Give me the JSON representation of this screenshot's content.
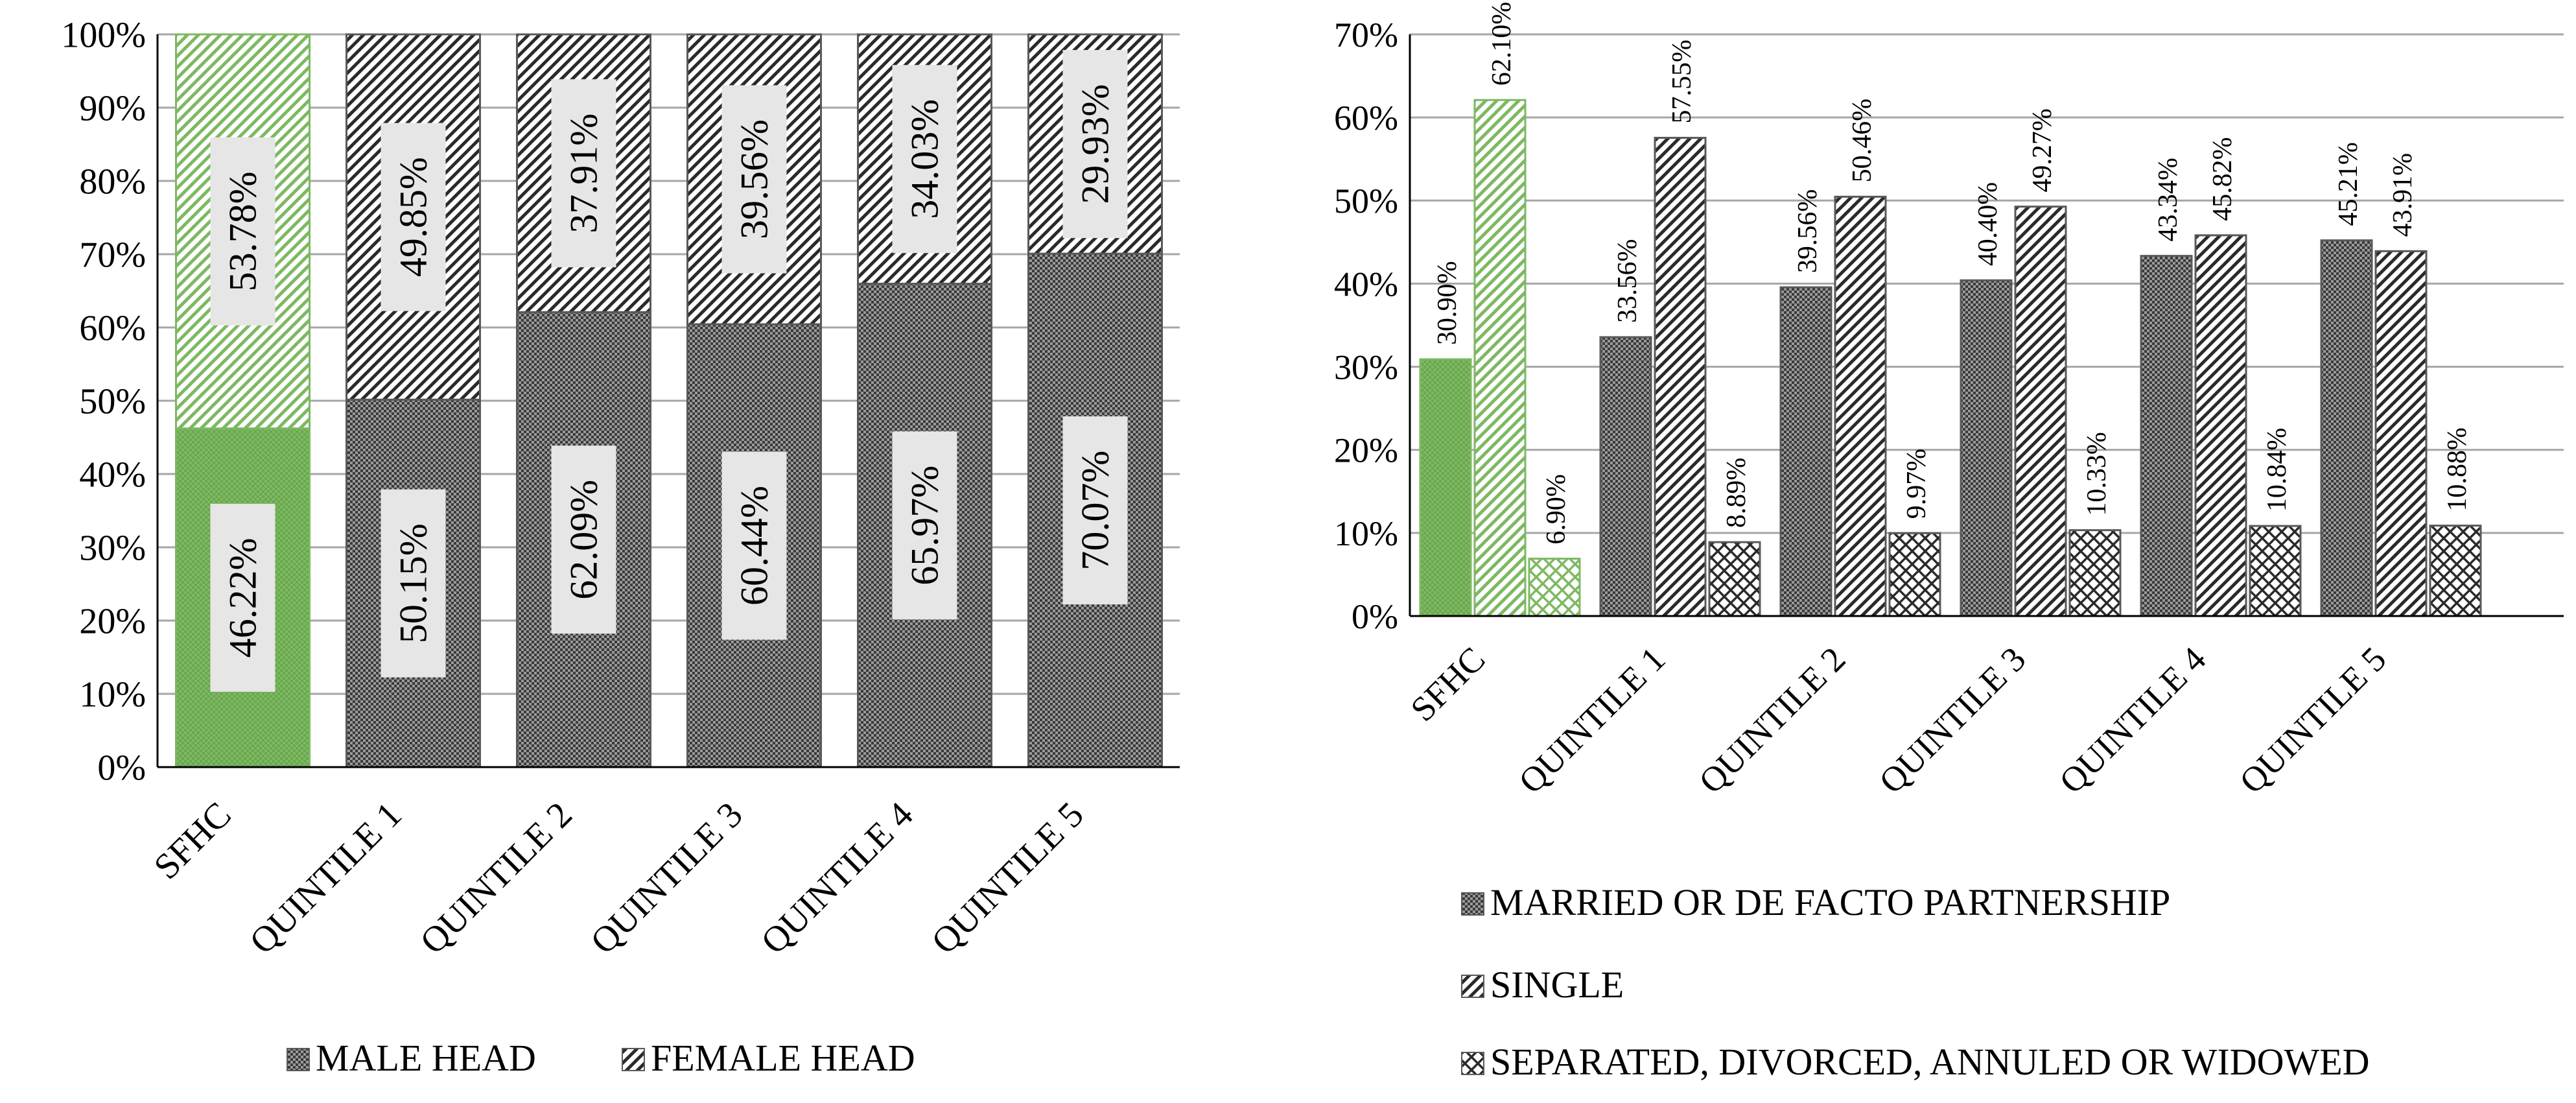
{
  "chart_data": [
    {
      "type": "bar",
      "stacked": true,
      "categories": [
        "SFHC",
        "QUINTILE 1",
        "QUINTILE 2",
        "QUINTILE 3",
        "QUINTILE 4",
        "QUINTILE 5"
      ],
      "series": [
        {
          "name": "MALE HEAD",
          "values": [
            46.22,
            50.15,
            62.09,
            60.44,
            65.97,
            70.07
          ],
          "labels": [
            "46.22%",
            "50.15%",
            "62.09%",
            "60.44%",
            "65.97%",
            "70.07%"
          ]
        },
        {
          "name": "FEMALE HEAD",
          "values": [
            53.78,
            49.85,
            37.91,
            39.56,
            34.03,
            29.93
          ],
          "labels": [
            "53.78%",
            "49.85%",
            "37.91%",
            "39.56%",
            "34.03%",
            "29.93%"
          ]
        }
      ],
      "ylim": [
        0,
        100
      ],
      "yticks": [
        "0%",
        "10%",
        "20%",
        "30%",
        "40%",
        "50%",
        "60%",
        "70%",
        "80%",
        "90%",
        "100%"
      ],
      "grid": true,
      "legend": "bottom",
      "highlight_category": "SFHC",
      "colors": {
        "highlight": "#7db862",
        "default": "#3a3a3a"
      }
    },
    {
      "type": "bar",
      "stacked": false,
      "categories": [
        "SFHC",
        "QUINTILE 1",
        "QUINTILE 2",
        "QUINTILE 3",
        "QUINTILE 4",
        "QUINTILE 5"
      ],
      "series": [
        {
          "name": "MARRIED OR DE FACTO PARTNERSHIP",
          "values": [
            30.9,
            33.56,
            39.56,
            40.4,
            43.34,
            45.21
          ],
          "labels": [
            "30.90%",
            "33.56%",
            "39.56%",
            "40.40%",
            "43.34%",
            "45.21%"
          ]
        },
        {
          "name": "SINGLE",
          "values": [
            62.1,
            57.55,
            50.46,
            49.27,
            45.82,
            43.91
          ],
          "labels": [
            "62.10%",
            "57.55%",
            "50.46%",
            "49.27%",
            "45.82%",
            "43.91%"
          ]
        },
        {
          "name": "SEPARATED, DIVORCED, ANNULED OR WIDOWED",
          "values": [
            6.9,
            8.89,
            9.97,
            10.33,
            10.84,
            10.88
          ],
          "labels": [
            "6.90%",
            "8.89%",
            "9.97%",
            "10.33%",
            "10.84%",
            "10.88%"
          ]
        }
      ],
      "ylim": [
        0,
        70
      ],
      "yticks": [
        "0%",
        "10%",
        "20%",
        "30%",
        "40%",
        "50%",
        "60%",
        "70%"
      ],
      "grid": true,
      "legend": "bottom",
      "highlight_category": "SFHC",
      "colors": {
        "highlight": "#7db862",
        "default": "#3a3a3a"
      }
    }
  ]
}
